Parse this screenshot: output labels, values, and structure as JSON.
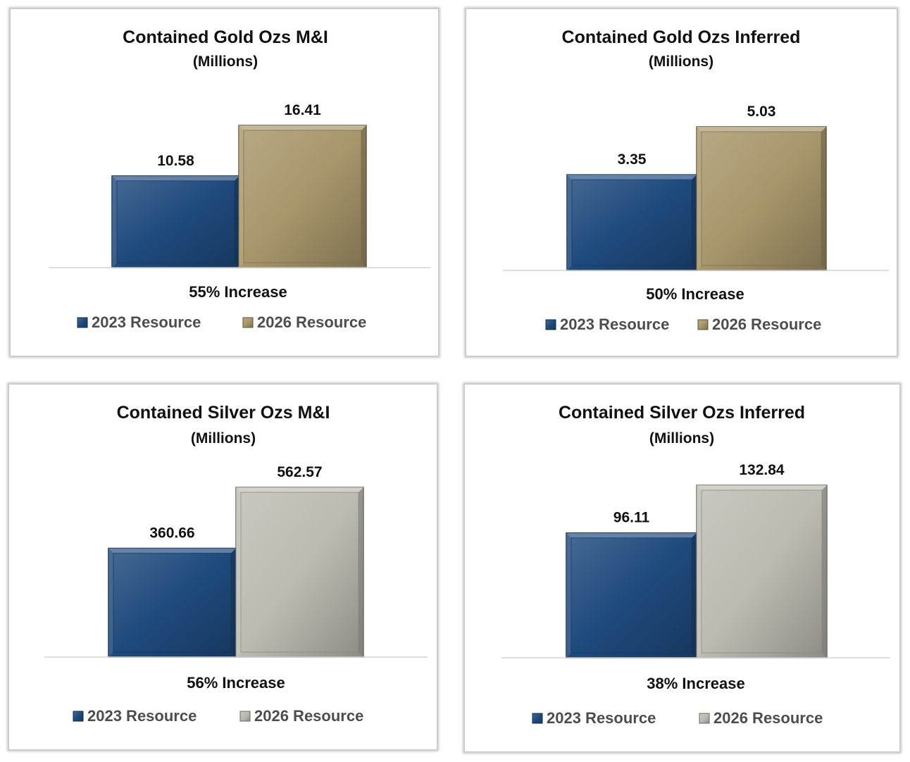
{
  "colors": {
    "series_2023": "#1f4a7d",
    "series_2026_gold": "#a8966b",
    "series_2026_silver": "#bdbbb1"
  },
  "chart_data": [
    {
      "type": "bar",
      "title": "Contained Gold Ozs M&I",
      "subtitle": "(Millions)",
      "categories": [
        "2023 Resource",
        "2026 Resource"
      ],
      "values": [
        10.58,
        16.41
      ],
      "data_labels": [
        "10.58",
        "16.41"
      ],
      "annotation": "55% Increase",
      "legend": [
        "2023 Resource",
        "2026 Resource"
      ],
      "legend_position": "bottom",
      "colors": [
        "#1f4a7d",
        "#a8966b"
      ],
      "grid": false
    },
    {
      "type": "bar",
      "title": "Contained Gold Ozs Inferred",
      "subtitle": "(Millions)",
      "categories": [
        "2023 Resource",
        "2026 Resource"
      ],
      "values": [
        3.35,
        5.03
      ],
      "data_labels": [
        "3.35",
        "5.03"
      ],
      "annotation": "50% Increase",
      "legend": [
        "2023 Resource",
        "2026 Resource"
      ],
      "legend_position": "bottom",
      "colors": [
        "#1f4a7d",
        "#a8966b"
      ],
      "grid": false
    },
    {
      "type": "bar",
      "title": "Contained Silver Ozs M&I",
      "subtitle": "(Millions)",
      "categories": [
        "2023 Resource",
        "2026 Resource"
      ],
      "values": [
        360.66,
        562.57
      ],
      "data_labels": [
        "360.66",
        "562.57"
      ],
      "annotation": "56% Increase",
      "legend": [
        "2023 Resource",
        "2026 Resource"
      ],
      "legend_position": "bottom",
      "colors": [
        "#1f4a7d",
        "#bdbbb1"
      ],
      "grid": false
    },
    {
      "type": "bar",
      "title": "Contained Silver Ozs Inferred",
      "subtitle": "(Millions)",
      "categories": [
        "2023 Resource",
        "2026 Resource"
      ],
      "values": [
        96.11,
        132.84
      ],
      "data_labels": [
        "96.11",
        "132.84"
      ],
      "annotation": "38% Increase",
      "legend": [
        "2023 Resource",
        "2026 Resource"
      ],
      "legend_position": "bottom",
      "colors": [
        "#1f4a7d",
        "#bdbbb1"
      ],
      "grid": false
    }
  ]
}
